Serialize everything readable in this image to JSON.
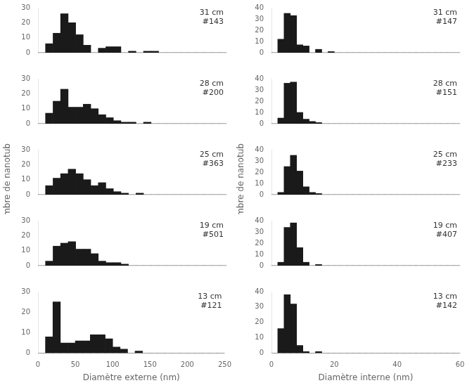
{
  "chart_data": [
    {
      "type": "histogram",
      "annotations": [
        "31 cm\n#143"
      ],
      "bins": [
        0,
        10,
        20,
        30,
        40,
        50,
        60,
        70,
        80,
        90,
        100,
        110,
        120,
        130,
        140,
        150,
        160,
        170,
        180,
        190,
        200,
        210,
        220,
        230,
        240,
        250
      ],
      "values": [
        0,
        6,
        13,
        26,
        20,
        12,
        5,
        0,
        3,
        4,
        4,
        0,
        1,
        0,
        1,
        1,
        0,
        0,
        0,
        0,
        0,
        0,
        0,
        0,
        0
      ],
      "color": "#1a1a1a",
      "xlim": [
        0,
        250
      ],
      "xticks": [
        0,
        50,
        100,
        150,
        200,
        250
      ],
      "ylim": [
        0,
        30
      ],
      "yticks": [
        0,
        10,
        20,
        30
      ],
      "grid": false,
      "tick_labels": "y"
    },
    {
      "type": "histogram",
      "annotations": [
        "28 cm\n#200"
      ],
      "bins": [
        0,
        10,
        20,
        30,
        40,
        50,
        60,
        70,
        80,
        90,
        100,
        110,
        120,
        130,
        140,
        150,
        160,
        170,
        180,
        190,
        200,
        210,
        220,
        230,
        240,
        250
      ],
      "values": [
        0,
        7,
        15,
        23,
        11,
        11,
        13,
        10,
        6,
        4,
        2,
        1,
        1,
        0,
        1,
        0,
        0,
        0,
        0,
        0,
        0,
        0,
        0,
        0,
        0
      ],
      "color": "#1a1a1a",
      "xlim": [
        0,
        250
      ],
      "xticks": [
        0,
        50,
        100,
        150,
        200,
        250
      ],
      "ylim": [
        0,
        30
      ],
      "yticks": [
        0,
        10,
        20,
        30
      ],
      "grid": false,
      "tick_labels": "y"
    },
    {
      "type": "histogram",
      "annotations": [
        "25 cm\n#363"
      ],
      "ylabel": "Nombre de nanotubes (%)",
      "bins": [
        0,
        10,
        20,
        30,
        40,
        50,
        60,
        70,
        80,
        90,
        100,
        110,
        120,
        130,
        140,
        150,
        160,
        170,
        180,
        190,
        200,
        210,
        220,
        230,
        240,
        250
      ],
      "values": [
        0,
        6,
        11,
        14,
        17,
        14,
        10,
        6,
        8,
        4,
        2,
        1,
        0,
        1,
        0,
        0,
        0,
        0,
        0,
        0,
        0,
        0,
        0,
        0,
        0
      ],
      "color": "#1a1a1a",
      "xlim": [
        0,
        250
      ],
      "xticks": [
        0,
        50,
        100,
        150,
        200,
        250
      ],
      "ylim": [
        0,
        30
      ],
      "yticks": [
        0,
        10,
        20,
        30
      ],
      "grid": false,
      "tick_labels": "y"
    },
    {
      "type": "histogram",
      "annotations": [
        "19 cm\n#501"
      ],
      "bins": [
        0,
        10,
        20,
        30,
        40,
        50,
        60,
        70,
        80,
        90,
        100,
        110,
        120,
        130,
        140,
        150,
        160,
        170,
        180,
        190,
        200,
        210,
        220,
        230,
        240,
        250
      ],
      "values": [
        0,
        3,
        13,
        15,
        16,
        11,
        11,
        8,
        3,
        2,
        2,
        1,
        0,
        0,
        0,
        0,
        0,
        0,
        0,
        0,
        0,
        0,
        0,
        0,
        0
      ],
      "color": "#1a1a1a",
      "xlim": [
        0,
        250
      ],
      "xticks": [
        0,
        50,
        100,
        150,
        200,
        250
      ],
      "ylim": [
        0,
        30
      ],
      "yticks": [
        0,
        10,
        20,
        30
      ],
      "grid": false,
      "tick_labels": "y"
    },
    {
      "type": "histogram",
      "annotations": [
        "13 cm\n#121"
      ],
      "xlabel": "Diamètre externe (nm)",
      "bins": [
        0,
        10,
        20,
        30,
        40,
        50,
        60,
        70,
        80,
        90,
        100,
        110,
        120,
        130,
        140,
        150,
        160,
        170,
        180,
        190,
        200,
        210,
        220,
        230,
        240,
        250
      ],
      "values": [
        0,
        8,
        25,
        5,
        5,
        6,
        6,
        9,
        9,
        7,
        3,
        2,
        0,
        1,
        0,
        0,
        0,
        0,
        0,
        0,
        0,
        0,
        0,
        0,
        0
      ],
      "color": "#1a1a1a",
      "xlim": [
        0,
        250
      ],
      "xticks": [
        0,
        50,
        100,
        150,
        200,
        250
      ],
      "ylim": [
        0,
        30
      ],
      "yticks": [
        0,
        10,
        20,
        30
      ],
      "grid": false
    },
    {
      "type": "histogram",
      "annotations": [
        "31 cm\n#147"
      ],
      "bins": [
        0,
        2,
        4,
        6,
        8,
        10,
        12,
        14,
        16,
        18,
        20,
        22,
        24,
        26,
        28,
        30,
        32,
        34,
        36,
        38,
        40,
        42,
        44,
        46,
        48,
        50,
        52,
        54,
        56,
        58,
        60
      ],
      "values": [
        0,
        12,
        35,
        33,
        7,
        6,
        0,
        3,
        0,
        1,
        0,
        0,
        0,
        0,
        0,
        0,
        0,
        0,
        0,
        0,
        0,
        0,
        0,
        0,
        0,
        0,
        0,
        0,
        0,
        0
      ],
      "color": "#1a1a1a",
      "xlim": [
        0,
        60
      ],
      "xticks": [
        0,
        20,
        40,
        60
      ],
      "ylim": [
        0,
        40
      ],
      "yticks": [
        0,
        10,
        20,
        30,
        40
      ],
      "grid": false,
      "tick_labels": "y"
    },
    {
      "type": "histogram",
      "annotations": [
        "28 cm\n#151"
      ],
      "bins": [
        0,
        2,
        4,
        6,
        8,
        10,
        12,
        14,
        16,
        18,
        20,
        22,
        24,
        26,
        28,
        30,
        32,
        34,
        36,
        38,
        40,
        42,
        44,
        46,
        48,
        50,
        52,
        54,
        56,
        58,
        60
      ],
      "values": [
        0,
        5,
        36,
        37,
        10,
        4,
        2,
        1,
        0,
        0,
        0,
        0,
        0,
        0,
        0,
        0,
        0,
        0,
        0,
        0,
        0,
        0,
        0,
        0,
        0,
        0,
        0,
        0,
        0,
        0
      ],
      "color": "#1a1a1a",
      "xlim": [
        0,
        60
      ],
      "xticks": [
        0,
        20,
        40,
        60
      ],
      "ylim": [
        0,
        40
      ],
      "yticks": [
        0,
        10,
        20,
        30,
        40
      ],
      "grid": false,
      "tick_labels": "y"
    },
    {
      "type": "histogram",
      "annotations": [
        "25 cm\n#233"
      ],
      "ylabel": "Nombre de nanotubes (%)",
      "bins": [
        0,
        2,
        4,
        6,
        8,
        10,
        12,
        14,
        16,
        18,
        20,
        22,
        24,
        26,
        28,
        30,
        32,
        34,
        36,
        38,
        40,
        42,
        44,
        46,
        48,
        50,
        52,
        54,
        56,
        58,
        60
      ],
      "values": [
        0,
        2,
        25,
        35,
        21,
        7,
        2,
        1,
        0,
        0,
        0,
        0,
        0,
        0,
        0,
        0,
        0,
        0,
        0,
        0,
        0,
        0,
        0,
        0,
        0,
        0,
        0,
        0,
        0,
        0
      ],
      "color": "#1a1a1a",
      "xlim": [
        0,
        60
      ],
      "xticks": [
        0,
        20,
        40,
        60
      ],
      "ylim": [
        0,
        40
      ],
      "yticks": [
        0,
        10,
        20,
        30,
        40
      ],
      "grid": false,
      "tick_labels": "y"
    },
    {
      "type": "histogram",
      "annotations": [
        "19 cm\n#407"
      ],
      "bins": [
        0,
        2,
        4,
        6,
        8,
        10,
        12,
        14,
        16,
        18,
        20,
        22,
        24,
        26,
        28,
        30,
        32,
        34,
        36,
        38,
        40,
        42,
        44,
        46,
        48,
        50,
        52,
        54,
        56,
        58,
        60
      ],
      "values": [
        0,
        3,
        34,
        38,
        16,
        3,
        0,
        1,
        0,
        0,
        0,
        0,
        0,
        0,
        0,
        0,
        0,
        0,
        0,
        0,
        0,
        0,
        0,
        0,
        0,
        0,
        0,
        0,
        0,
        0
      ],
      "color": "#1a1a1a",
      "xlim": [
        0,
        60
      ],
      "xticks": [
        0,
        20,
        40,
        60
      ],
      "ylim": [
        0,
        40
      ],
      "yticks": [
        0,
        10,
        20,
        30,
        40
      ],
      "grid": false,
      "tick_labels": "y"
    },
    {
      "type": "histogram",
      "annotations": [
        "13 cm\n#142"
      ],
      "xlabel": "Diamètre interne (nm)",
      "bins": [
        0,
        2,
        4,
        6,
        8,
        10,
        12,
        14,
        16,
        18,
        20,
        22,
        24,
        26,
        28,
        30,
        32,
        34,
        36,
        38,
        40,
        42,
        44,
        46,
        48,
        50,
        52,
        54,
        56,
        58,
        60
      ],
      "values": [
        0,
        16,
        38,
        32,
        5,
        1,
        0,
        1,
        0,
        0,
        0,
        0,
        0,
        0,
        0,
        0,
        0,
        0,
        0,
        0,
        0,
        0,
        0,
        0,
        0,
        0,
        0,
        0,
        0,
        0
      ],
      "color": "#1a1a1a",
      "xlim": [
        0,
        60
      ],
      "xticks": [
        0,
        20,
        40,
        60
      ],
      "ylim": [
        0,
        40
      ],
      "yticks": [
        0,
        10,
        20,
        30,
        40
      ],
      "grid": false
    }
  ]
}
